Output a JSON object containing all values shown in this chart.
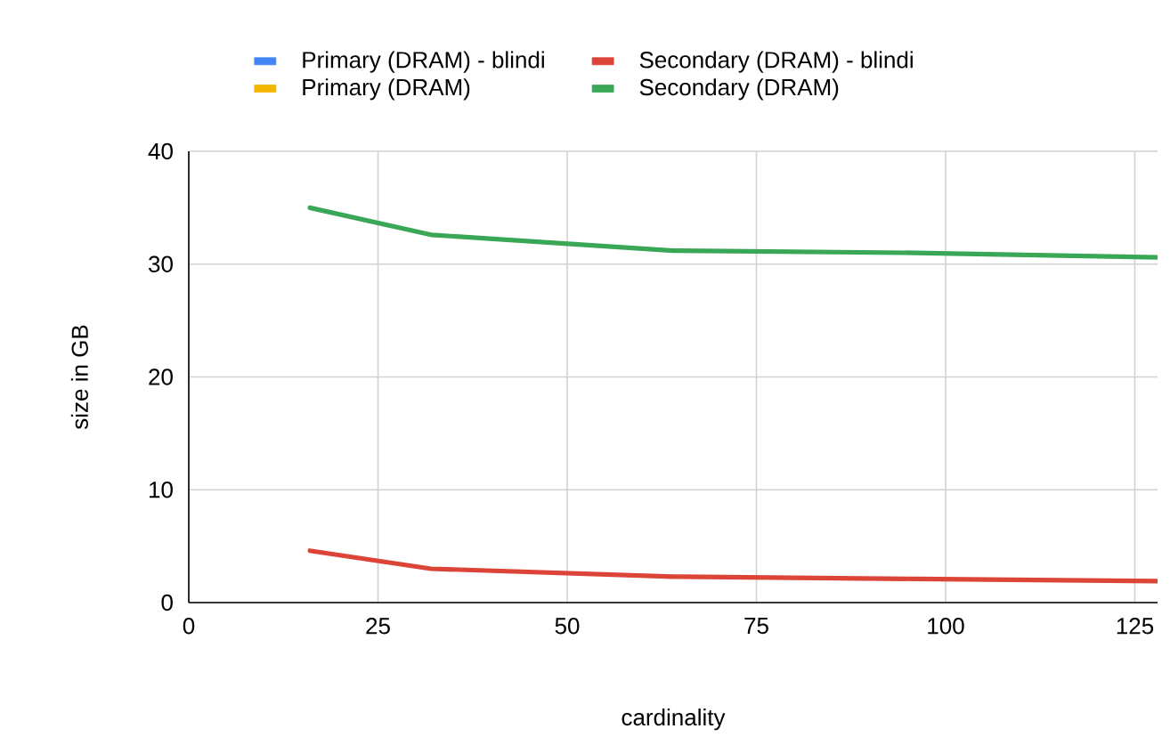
{
  "chart_data": {
    "type": "line",
    "xlabel": "cardinality",
    "ylabel": "size in GB",
    "x": [
      16,
      32,
      64,
      96,
      128
    ],
    "series": [
      {
        "name": "Primary (DRAM) - blindi",
        "color": "#4285f4",
        "values": [
          null,
          null,
          null,
          null,
          null
        ]
      },
      {
        "name": "Secondary (DRAM) - blindi",
        "color": "#db4437",
        "values": [
          4.6,
          3.0,
          2.3,
          2.1,
          1.9
        ]
      },
      {
        "name": "Primary (DRAM)",
        "color": "#f4b400",
        "values": [
          null,
          null,
          null,
          null,
          null
        ]
      },
      {
        "name": "Secondary (DRAM)",
        "color": "#3aa757",
        "values": [
          35.0,
          32.6,
          31.2,
          31.0,
          30.6
        ]
      }
    ],
    "xlim": [
      0,
      128
    ],
    "ylim": [
      0,
      40
    ],
    "xticks": [
      0,
      25,
      50,
      75,
      100,
      125
    ],
    "yticks": [
      0,
      10,
      20,
      30,
      40
    ],
    "grid": true,
    "legend": "top",
    "marker": "none",
    "line_style": "solid"
  }
}
